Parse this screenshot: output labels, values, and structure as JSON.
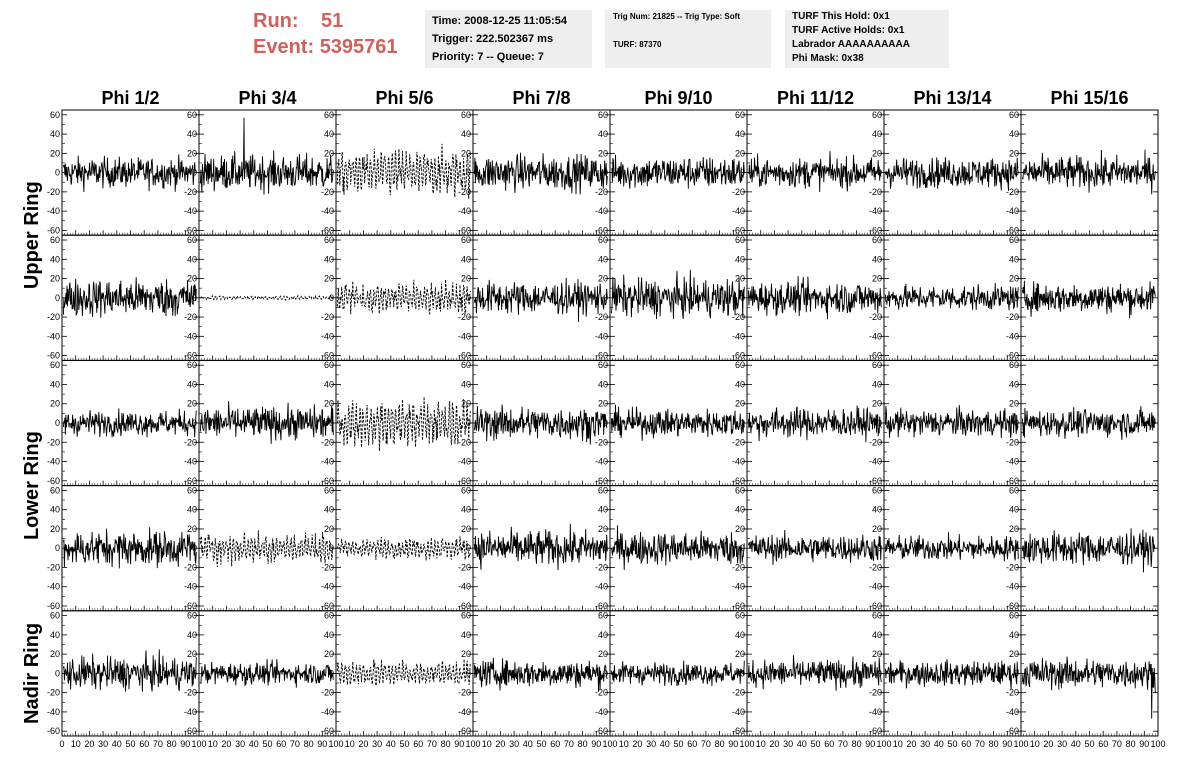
{
  "header": {
    "run_label": "Run:",
    "run_value": "51",
    "event_label": "Event:",
    "event_value": "5395761"
  },
  "info_panel_1": {
    "time": "Time: 2008-12-25 11:05:54",
    "trigger": "Trigger: 222.502367 ms",
    "priority": "Priority: 7 -- Queue: 7"
  },
  "info_panel_2": {
    "trig": "Trig Num: 21825 -- Trig Type: Soft",
    "turf": "TURF: 87370"
  },
  "info_panel_3": {
    "hold": "TURF This Hold: 0x1",
    "active": "TURF Active Holds: 0x1",
    "labrador": "Labrador AAAAAAAAAA",
    "phimask": "Phi Mask: 0x38"
  },
  "chart_data": {
    "type": "line",
    "columns": [
      "Phi 1/2",
      "Phi 3/4",
      "Phi 5/6",
      "Phi 7/8",
      "Phi 9/10",
      "Phi 11/12",
      "Phi 13/14",
      "Phi 15/16"
    ],
    "ring_labels": [
      "Upper Ring",
      "Lower Ring",
      "Nadir Ring"
    ],
    "rows_per_ring": [
      2,
      2,
      1
    ],
    "xlim": [
      0,
      100
    ],
    "ylim": [
      -65,
      65
    ],
    "x_ticks": [
      0,
      10,
      20,
      30,
      40,
      50,
      60,
      70,
      80,
      90,
      100
    ],
    "y_ticks": [
      -60,
      -40,
      -20,
      0,
      20,
      40,
      60
    ],
    "samples_per_trace": 260,
    "line_color": "#000000",
    "panels": [
      [
        {
          "amp": 11,
          "style": "solid"
        },
        {
          "amp": 13,
          "style": "solid",
          "spike": 57
        },
        {
          "amp": 24,
          "style": "dashed"
        },
        {
          "amp": 13,
          "style": "solid"
        },
        {
          "amp": 12,
          "style": "solid"
        },
        {
          "amp": 11,
          "style": "solid"
        },
        {
          "amp": 11,
          "style": "solid"
        },
        {
          "amp": 12,
          "style": "solid"
        }
      ],
      [
        {
          "amp": 14,
          "style": "solid"
        },
        {
          "amp": 2,
          "style": "dashed"
        },
        {
          "amp": 18,
          "style": "dashed"
        },
        {
          "amp": 12,
          "style": "solid"
        },
        {
          "amp": 14,
          "style": "solid"
        },
        {
          "amp": 12,
          "style": "solid"
        },
        {
          "amp": 9,
          "style": "solid"
        },
        {
          "amp": 11,
          "style": "solid"
        }
      ],
      [
        {
          "amp": 9,
          "style": "solid"
        },
        {
          "amp": 12,
          "style": "solid"
        },
        {
          "amp": 26,
          "style": "dashed"
        },
        {
          "amp": 12,
          "style": "solid"
        },
        {
          "amp": 10,
          "style": "solid"
        },
        {
          "amp": 11,
          "style": "solid"
        },
        {
          "amp": 10,
          "style": "solid"
        },
        {
          "amp": 10,
          "style": "solid"
        }
      ],
      [
        {
          "amp": 13,
          "style": "solid"
        },
        {
          "amp": 17,
          "style": "dashed"
        },
        {
          "amp": 12,
          "style": "dashed"
        },
        {
          "amp": 13,
          "style": "solid"
        },
        {
          "amp": 12,
          "style": "solid"
        },
        {
          "amp": 10,
          "style": "solid"
        },
        {
          "amp": 9,
          "style": "solid"
        },
        {
          "amp": 12,
          "style": "solid"
        }
      ],
      [
        {
          "amp": 12,
          "style": "solid"
        },
        {
          "amp": 8,
          "style": "solid"
        },
        {
          "amp": 14,
          "style": "dashed"
        },
        {
          "amp": 10,
          "style": "solid"
        },
        {
          "amp": 8,
          "style": "solid"
        },
        {
          "amp": 10,
          "style": "solid"
        },
        {
          "amp": 9,
          "style": "solid"
        },
        {
          "amp": 11,
          "style": "solid",
          "spike": -47
        }
      ]
    ]
  }
}
